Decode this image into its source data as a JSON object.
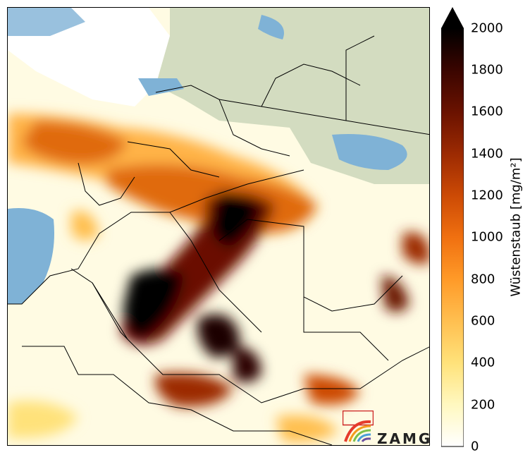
{
  "colorbar": {
    "label": "Wüstenstaub [mg/m²]",
    "unit": "mg/m²",
    "min": 0,
    "max": 2000,
    "extend": "max",
    "ticks": [
      "0",
      "200",
      "400",
      "600",
      "800",
      "1000",
      "1200",
      "1400",
      "1600",
      "1800",
      "2000"
    ],
    "colors": [
      "#ffffff",
      "#fff8c0",
      "#ffe27a",
      "#ffbf50",
      "#ff9a28",
      "#f07010",
      "#cc4a05",
      "#9c2a02",
      "#6a1200",
      "#3a0500",
      "#000000"
    ]
  },
  "logo": {
    "text": "ZAMG"
  },
  "colors": {
    "sea": "#7fb2d6",
    "land": "#c9d4b5",
    "border": "#000000"
  }
}
